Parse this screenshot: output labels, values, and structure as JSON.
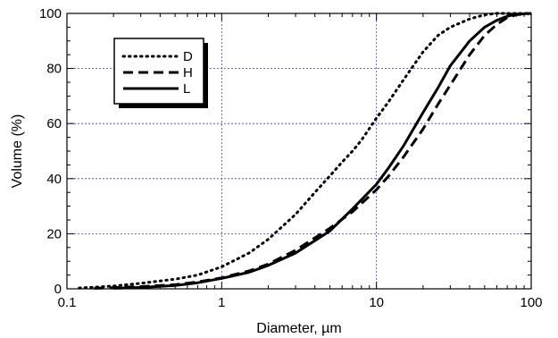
{
  "chart_data": {
    "type": "line",
    "xlabel": "Diameter, µm",
    "ylabel": "Volume (%)",
    "xscale": "log",
    "xlim": [
      0.1,
      100
    ],
    "ylim": [
      0,
      100
    ],
    "x_ticks": [
      0.1,
      1,
      10,
      100
    ],
    "x_tick_labels": [
      "0.1",
      "1",
      "10",
      "100"
    ],
    "y_ticks": [
      0,
      20,
      40,
      60,
      80,
      100
    ],
    "y_tick_labels": [
      "0",
      "20",
      "40",
      "60",
      "80",
      "100"
    ],
    "grid": true,
    "legend_position": "top-left",
    "series": [
      {
        "name": "D",
        "style": "dotted",
        "x": [
          0.12,
          0.15,
          0.2,
          0.3,
          0.5,
          0.7,
          1,
          1.5,
          2,
          3,
          4,
          5,
          6,
          7,
          8,
          10,
          12,
          15,
          20,
          25,
          30,
          40,
          50,
          60,
          70,
          80,
          100
        ],
        "y": [
          0.3,
          0.6,
          1,
          2,
          3.5,
          5,
          8,
          13,
          18,
          27,
          35,
          41,
          46,
          50,
          54,
          62,
          68,
          76,
          86,
          92,
          95,
          98,
          99.5,
          100,
          100,
          100,
          100
        ]
      },
      {
        "name": "H",
        "style": "dashed",
        "x": [
          0.15,
          0.2,
          0.3,
          0.5,
          0.7,
          1,
          1.5,
          2,
          3,
          5,
          7,
          10,
          12,
          15,
          20,
          25,
          30,
          40,
          50,
          60,
          70,
          80,
          100
        ],
        "y": [
          0.2,
          0.4,
          0.8,
          1.5,
          2.5,
          4,
          6.5,
          9,
          14,
          22,
          28,
          36,
          41,
          48,
          58,
          67,
          74,
          85,
          92,
          96,
          98.5,
          99.5,
          100
        ]
      },
      {
        "name": "L",
        "style": "solid",
        "x": [
          0.2,
          0.3,
          0.5,
          0.7,
          1,
          1.5,
          2,
          3,
          5,
          7,
          10,
          12,
          15,
          20,
          25,
          30,
          40,
          50,
          60,
          70,
          80,
          100
        ],
        "y": [
          0.2,
          0.5,
          1.2,
          2.2,
          3.8,
          6,
          8.5,
          13,
          21,
          29,
          38,
          44,
          52,
          64,
          73,
          81,
          90,
          95,
          97.5,
          99,
          99.7,
          100
        ]
      }
    ]
  }
}
